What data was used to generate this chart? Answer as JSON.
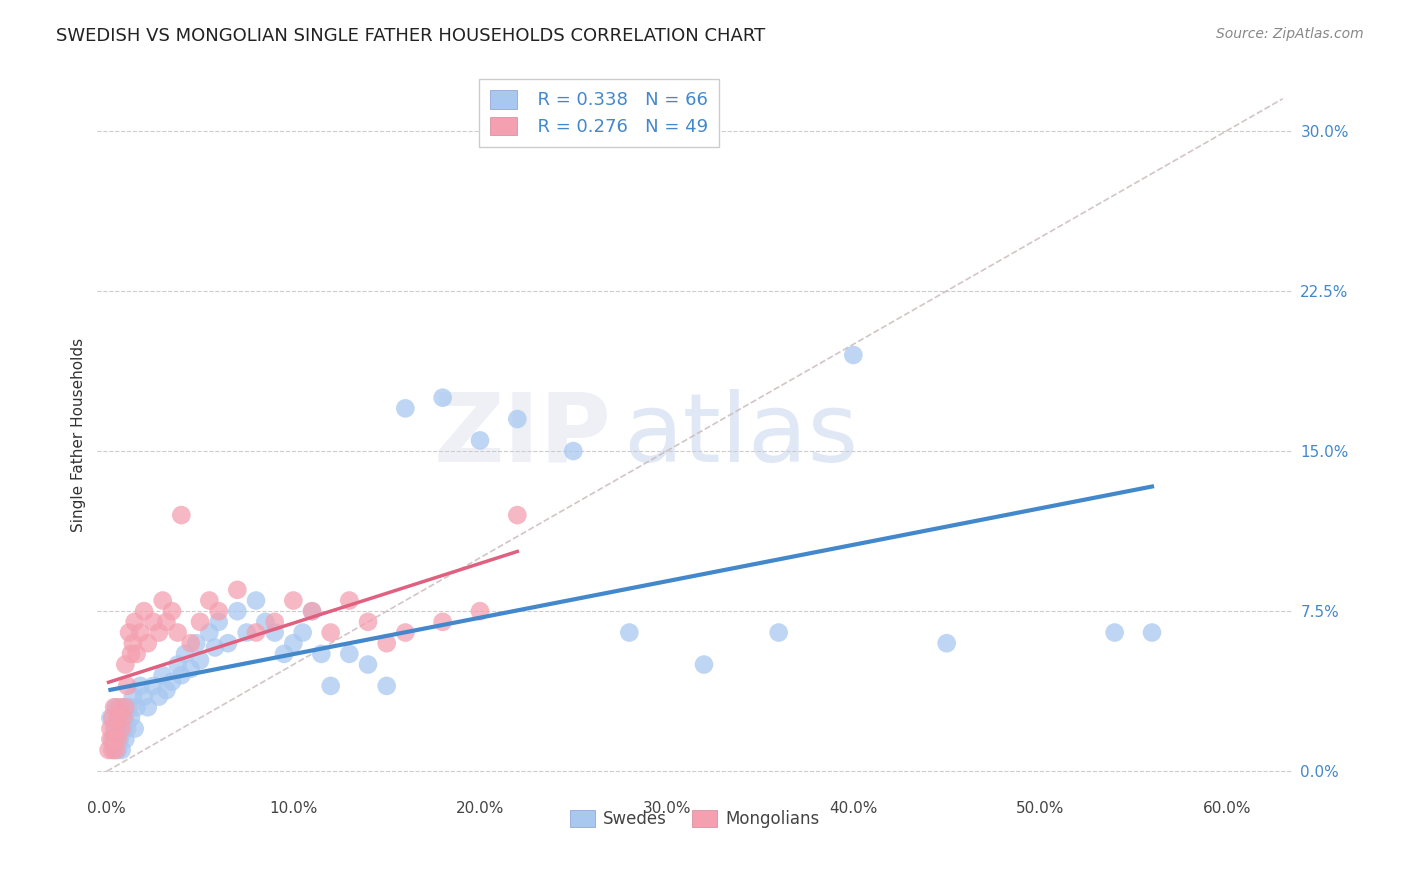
{
  "title": "SWEDISH VS MONGOLIAN SINGLE FATHER HOUSEHOLDS CORRELATION CHART",
  "source": "Source: ZipAtlas.com",
  "ylabel": "Single Father Households",
  "xlabel_ticks": [
    "0.0%",
    "10.0%",
    "20.0%",
    "30.0%",
    "40.0%",
    "50.0%",
    "60.0%"
  ],
  "xlabel_vals": [
    0.0,
    0.1,
    0.2,
    0.3,
    0.4,
    0.5,
    0.6
  ],
  "ytick_labels": [
    "0.0%",
    "7.5%",
    "15.0%",
    "22.5%",
    "30.0%"
  ],
  "ytick_vals": [
    0.0,
    0.075,
    0.15,
    0.225,
    0.3
  ],
  "xlim": [
    -0.005,
    0.635
  ],
  "ylim": [
    -0.01,
    0.325
  ],
  "swedish_color": "#a8c8f0",
  "mongolian_color": "#f4a0b0",
  "swedish_line_color": "#4488cc",
  "mongolian_line_color": "#e06080",
  "diag_color": "#ccbbbb",
  "grid_color": "#cccccc",
  "swedish_x": [
    0.002,
    0.003,
    0.004,
    0.004,
    0.005,
    0.005,
    0.006,
    0.006,
    0.007,
    0.007,
    0.008,
    0.008,
    0.009,
    0.009,
    0.01,
    0.01,
    0.011,
    0.012,
    0.013,
    0.014,
    0.015,
    0.016,
    0.018,
    0.02,
    0.022,
    0.025,
    0.028,
    0.03,
    0.032,
    0.035,
    0.038,
    0.04,
    0.042,
    0.045,
    0.048,
    0.05,
    0.055,
    0.058,
    0.06,
    0.065,
    0.07,
    0.075,
    0.08,
    0.085,
    0.09,
    0.095,
    0.1,
    0.105,
    0.11,
    0.115,
    0.12,
    0.13,
    0.14,
    0.15,
    0.16,
    0.18,
    0.2,
    0.22,
    0.25,
    0.28,
    0.32,
    0.36,
    0.4,
    0.45,
    0.54,
    0.56
  ],
  "swedish_y": [
    0.025,
    0.015,
    0.01,
    0.02,
    0.015,
    0.03,
    0.01,
    0.025,
    0.015,
    0.02,
    0.01,
    0.025,
    0.02,
    0.03,
    0.015,
    0.025,
    0.02,
    0.03,
    0.025,
    0.035,
    0.02,
    0.03,
    0.04,
    0.035,
    0.03,
    0.04,
    0.035,
    0.045,
    0.038,
    0.042,
    0.05,
    0.045,
    0.055,
    0.048,
    0.06,
    0.052,
    0.065,
    0.058,
    0.07,
    0.06,
    0.075,
    0.065,
    0.08,
    0.07,
    0.065,
    0.055,
    0.06,
    0.065,
    0.075,
    0.055,
    0.04,
    0.055,
    0.05,
    0.04,
    0.17,
    0.175,
    0.155,
    0.165,
    0.15,
    0.065,
    0.05,
    0.065,
    0.195,
    0.06,
    0.065,
    0.065
  ],
  "mongolian_x": [
    0.001,
    0.002,
    0.002,
    0.003,
    0.003,
    0.004,
    0.004,
    0.005,
    0.005,
    0.006,
    0.006,
    0.007,
    0.008,
    0.009,
    0.01,
    0.01,
    0.011,
    0.012,
    0.013,
    0.014,
    0.015,
    0.016,
    0.018,
    0.02,
    0.022,
    0.025,
    0.028,
    0.03,
    0.032,
    0.035,
    0.038,
    0.04,
    0.045,
    0.05,
    0.055,
    0.06,
    0.07,
    0.08,
    0.09,
    0.1,
    0.11,
    0.12,
    0.13,
    0.14,
    0.15,
    0.16,
    0.18,
    0.2,
    0.22
  ],
  "mongolian_y": [
    0.01,
    0.015,
    0.02,
    0.01,
    0.025,
    0.015,
    0.03,
    0.01,
    0.02,
    0.015,
    0.025,
    0.03,
    0.02,
    0.025,
    0.03,
    0.05,
    0.04,
    0.065,
    0.055,
    0.06,
    0.07,
    0.055,
    0.065,
    0.075,
    0.06,
    0.07,
    0.065,
    0.08,
    0.07,
    0.075,
    0.065,
    0.12,
    0.06,
    0.07,
    0.08,
    0.075,
    0.085,
    0.065,
    0.07,
    0.08,
    0.075,
    0.065,
    0.08,
    0.07,
    0.06,
    0.065,
    0.07,
    0.075,
    0.12
  ]
}
